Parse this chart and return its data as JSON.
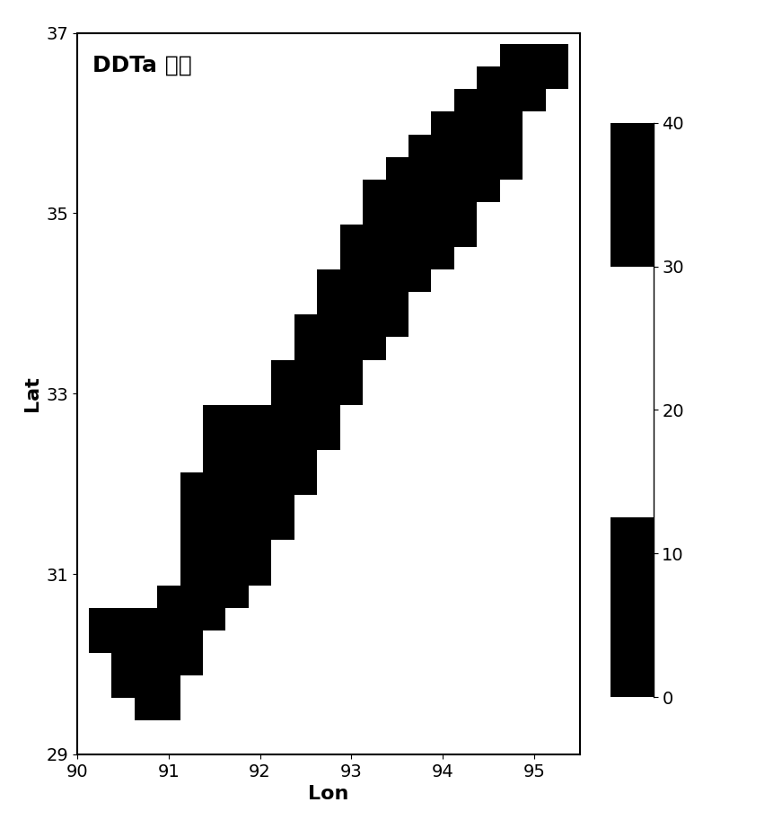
{
  "title": "DDTa 趋势",
  "xlabel": "Lon",
  "ylabel": "Lat",
  "xlim": [
    90.0,
    95.5
  ],
  "ylim": [
    29.0,
    37.0
  ],
  "xticks": [
    90,
    91,
    92,
    93,
    94,
    95
  ],
  "yticks": [
    29,
    31,
    33,
    35,
    37
  ],
  "vmin": 0,
  "vmax": 40,
  "colorbar_ticks": [
    0,
    10,
    20,
    30,
    40
  ],
  "grid_resolution": 0.25,
  "background_color": "#ffffff",
  "points": [
    [
      90.25,
      30.5
    ],
    [
      90.25,
      30.25
    ],
    [
      90.5,
      30.5
    ],
    [
      90.5,
      30.25
    ],
    [
      90.5,
      30.0
    ],
    [
      90.5,
      29.75
    ],
    [
      90.75,
      30.5
    ],
    [
      90.75,
      30.25
    ],
    [
      90.75,
      30.0
    ],
    [
      90.75,
      29.75
    ],
    [
      90.75,
      29.5
    ],
    [
      91.0,
      30.75
    ],
    [
      91.0,
      30.5
    ],
    [
      91.0,
      30.25
    ],
    [
      91.0,
      30.0
    ],
    [
      91.0,
      29.75
    ],
    [
      91.0,
      29.5
    ],
    [
      91.25,
      32.0
    ],
    [
      91.25,
      31.75
    ],
    [
      91.25,
      31.5
    ],
    [
      91.25,
      31.25
    ],
    [
      91.25,
      31.0
    ],
    [
      91.25,
      30.75
    ],
    [
      91.25,
      30.5
    ],
    [
      91.25,
      30.25
    ],
    [
      91.25,
      30.0
    ],
    [
      91.5,
      32.75
    ],
    [
      91.5,
      32.5
    ],
    [
      91.5,
      32.25
    ],
    [
      91.5,
      32.0
    ],
    [
      91.5,
      31.75
    ],
    [
      91.5,
      31.5
    ],
    [
      91.5,
      31.25
    ],
    [
      91.5,
      31.0
    ],
    [
      91.5,
      30.75
    ],
    [
      91.5,
      30.5
    ],
    [
      91.75,
      32.75
    ],
    [
      91.75,
      32.5
    ],
    [
      91.75,
      32.25
    ],
    [
      91.75,
      32.0
    ],
    [
      91.75,
      31.75
    ],
    [
      91.75,
      31.5
    ],
    [
      91.75,
      31.25
    ],
    [
      91.75,
      31.0
    ],
    [
      91.75,
      30.75
    ],
    [
      92.0,
      32.75
    ],
    [
      92.0,
      32.5
    ],
    [
      92.0,
      32.25
    ],
    [
      92.0,
      32.0
    ],
    [
      92.0,
      31.75
    ],
    [
      92.0,
      31.5
    ],
    [
      92.0,
      31.25
    ],
    [
      92.0,
      31.0
    ],
    [
      92.25,
      33.25
    ],
    [
      92.25,
      33.0
    ],
    [
      92.25,
      32.75
    ],
    [
      92.25,
      32.5
    ],
    [
      92.25,
      32.25
    ],
    [
      92.25,
      32.0
    ],
    [
      92.25,
      31.75
    ],
    [
      92.25,
      31.5
    ],
    [
      92.5,
      33.75
    ],
    [
      92.5,
      33.5
    ],
    [
      92.5,
      33.25
    ],
    [
      92.5,
      33.0
    ],
    [
      92.5,
      32.75
    ],
    [
      92.5,
      32.5
    ],
    [
      92.5,
      32.25
    ],
    [
      92.5,
      32.0
    ],
    [
      92.75,
      34.25
    ],
    [
      92.75,
      34.0
    ],
    [
      92.75,
      33.75
    ],
    [
      92.75,
      33.5
    ],
    [
      92.75,
      33.25
    ],
    [
      92.75,
      33.0
    ],
    [
      92.75,
      32.75
    ],
    [
      92.75,
      32.5
    ],
    [
      93.0,
      34.75
    ],
    [
      93.0,
      34.5
    ],
    [
      93.0,
      34.25
    ],
    [
      93.0,
      34.0
    ],
    [
      93.0,
      33.75
    ],
    [
      93.0,
      33.5
    ],
    [
      93.0,
      33.25
    ],
    [
      93.0,
      33.0
    ],
    [
      93.25,
      35.25
    ],
    [
      93.25,
      35.0
    ],
    [
      93.25,
      34.75
    ],
    [
      93.25,
      34.5
    ],
    [
      93.25,
      34.25
    ],
    [
      93.25,
      34.0
    ],
    [
      93.25,
      33.75
    ],
    [
      93.25,
      33.5
    ],
    [
      93.5,
      35.5
    ],
    [
      93.5,
      35.25
    ],
    [
      93.5,
      35.0
    ],
    [
      93.5,
      34.75
    ],
    [
      93.5,
      34.5
    ],
    [
      93.5,
      34.25
    ],
    [
      93.5,
      34.0
    ],
    [
      93.5,
      33.75
    ],
    [
      93.75,
      35.75
    ],
    [
      93.75,
      35.5
    ],
    [
      93.75,
      35.25
    ],
    [
      93.75,
      35.0
    ],
    [
      93.75,
      34.75
    ],
    [
      93.75,
      34.5
    ],
    [
      93.75,
      34.25
    ],
    [
      94.0,
      36.0
    ],
    [
      94.0,
      35.75
    ],
    [
      94.0,
      35.5
    ],
    [
      94.0,
      35.25
    ],
    [
      94.0,
      35.0
    ],
    [
      94.0,
      34.75
    ],
    [
      94.0,
      34.5
    ],
    [
      94.25,
      36.25
    ],
    [
      94.25,
      36.0
    ],
    [
      94.25,
      35.75
    ],
    [
      94.25,
      35.5
    ],
    [
      94.25,
      35.25
    ],
    [
      94.25,
      35.0
    ],
    [
      94.25,
      34.75
    ],
    [
      94.5,
      36.5
    ],
    [
      94.5,
      36.25
    ],
    [
      94.5,
      36.0
    ],
    [
      94.5,
      35.75
    ],
    [
      94.5,
      35.5
    ],
    [
      94.5,
      35.25
    ],
    [
      94.75,
      36.75
    ],
    [
      94.75,
      36.5
    ],
    [
      94.75,
      36.25
    ],
    [
      94.75,
      36.0
    ],
    [
      94.75,
      35.75
    ],
    [
      94.75,
      35.5
    ],
    [
      95.0,
      36.75
    ],
    [
      95.0,
      36.5
    ],
    [
      95.0,
      36.25
    ],
    [
      95.25,
      36.75
    ],
    [
      95.25,
      36.5
    ]
  ],
  "values": 35,
  "title_fontsize": 18,
  "label_fontsize": 16,
  "tick_fontsize": 14,
  "colorbar_fontsize": 14
}
